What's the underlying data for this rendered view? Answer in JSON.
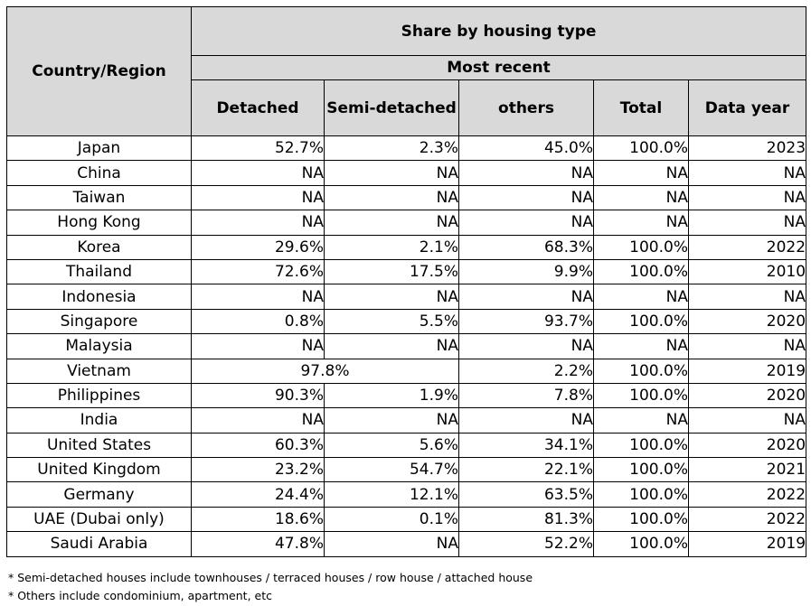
{
  "headers": {
    "country": "Country/Region",
    "group": "Share by housing type",
    "subgroup": "Most recent",
    "columns": [
      "Detached",
      "Semi-detached",
      "others",
      "Total",
      "Data year"
    ]
  },
  "rows": [
    {
      "country": "Japan",
      "detached": "52.7%",
      "semi": "2.3%",
      "others": "45.0%",
      "total": "100.0%",
      "year": "2023"
    },
    {
      "country": "China",
      "detached": "NA",
      "semi": "NA",
      "others": "NA",
      "total": "NA",
      "year": "NA"
    },
    {
      "country": "Taiwan",
      "detached": "NA",
      "semi": "NA",
      "others": "NA",
      "total": "NA",
      "year": "NA"
    },
    {
      "country": "Hong Kong",
      "detached": "NA",
      "semi": "NA",
      "others": "NA",
      "total": "NA",
      "year": "NA"
    },
    {
      "country": "Korea",
      "detached": "29.6%",
      "semi": "2.1%",
      "others": "68.3%",
      "total": "100.0%",
      "year": "2022"
    },
    {
      "country": "Thailand",
      "detached": "72.6%",
      "semi": "17.5%",
      "others": "9.9%",
      "total": "100.0%",
      "year": "2010"
    },
    {
      "country": "Indonesia",
      "detached": "NA",
      "semi": "NA",
      "others": "NA",
      "total": "NA",
      "year": "NA"
    },
    {
      "country": "Singapore",
      "detached": "0.8%",
      "semi": "5.5%",
      "others": "93.7%",
      "total": "100.0%",
      "year": "2020"
    },
    {
      "country": "Malaysia",
      "detached": "NA",
      "semi": "NA",
      "others": "NA",
      "total": "NA",
      "year": "NA"
    },
    {
      "country": "Vietnam",
      "merged": "97.8%",
      "others": "2.2%",
      "total": "100.0%",
      "year": "2019"
    },
    {
      "country": "Philippines",
      "detached": "90.3%",
      "semi": "1.9%",
      "others": "7.8%",
      "total": "100.0%",
      "year": "2020"
    },
    {
      "country": "India",
      "detached": "NA",
      "semi": "NA",
      "others": "NA",
      "total": "NA",
      "year": "NA"
    },
    {
      "country": "United States",
      "detached": "60.3%",
      "semi": "5.6%",
      "others": "34.1%",
      "total": "100.0%",
      "year": "2020"
    },
    {
      "country": "United Kingdom",
      "detached": "23.2%",
      "semi": "54.7%",
      "others": "22.1%",
      "total": "100.0%",
      "year": "2021"
    },
    {
      "country": "Germany",
      "detached": "24.4%",
      "semi": "12.1%",
      "others": "63.5%",
      "total": "100.0%",
      "year": "2022"
    },
    {
      "country": "UAE (Dubai only)",
      "detached": "18.6%",
      "semi": "0.1%",
      "others": "81.3%",
      "total": "100.0%",
      "year": "2022"
    },
    {
      "country": "Saudi Arabia",
      "detached": "47.8%",
      "semi": "NA",
      "others": "52.2%",
      "total": "100.0%",
      "year": "2019"
    }
  ],
  "notes": [
    "* Semi-detached houses include townhouses / terraced houses / row house / attached house",
    "* Others include condominium, apartment, etc"
  ]
}
